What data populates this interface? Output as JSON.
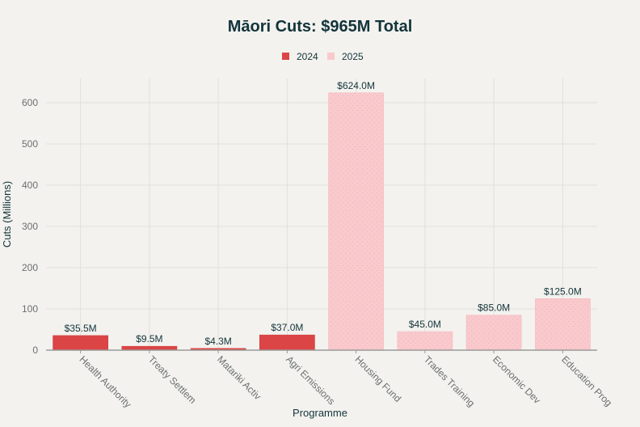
{
  "chart_data": {
    "type": "bar",
    "title": "Māori Cuts: $965M Total",
    "xlabel": "Programme",
    "ylabel": "Cuts (Millions)",
    "ylim": [
      0,
      660
    ],
    "yticks": [
      0,
      100,
      200,
      300,
      400,
      500,
      600
    ],
    "grid": true,
    "legend_position": "top-center",
    "categories": [
      "Health Authority",
      "Treaty Settlem",
      "Matariki Activ",
      "Agri Emissions",
      "Housing Fund",
      "Trades Training",
      "Economic Dev",
      "Education Prog"
    ],
    "series": [
      {
        "name": "2024",
        "color": "#db4545",
        "values": [
          35.5,
          9.5,
          4.3,
          37.0,
          null,
          null,
          null,
          null
        ]
      },
      {
        "name": "2025",
        "color": "#f9c9cc",
        "values": [
          null,
          null,
          null,
          null,
          624.0,
          45.0,
          85.0,
          125.0
        ]
      }
    ],
    "data_labels": [
      "$35.5M",
      "$9.5M",
      "$4.3M",
      "$37.0M",
      "$624.0M",
      "$45.0M",
      "$85.0M",
      "$125.0M"
    ]
  }
}
